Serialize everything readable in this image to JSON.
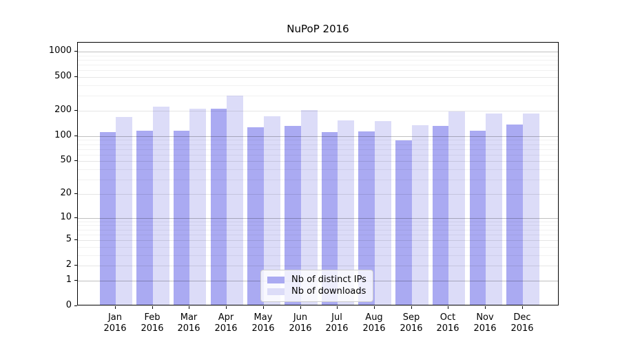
{
  "chart_data": {
    "type": "bar",
    "title": "NuPoP 2016",
    "categories": [
      "Jan",
      "Feb",
      "Mar",
      "Apr",
      "May",
      "Jun",
      "Jul",
      "Aug",
      "Sep",
      "Oct",
      "Nov",
      "Dec"
    ],
    "year_label": "2016",
    "series": [
      {
        "name": "Nb of distinct IPs",
        "color": "#aaaaf2",
        "values": [
          108,
          112,
          111,
          203,
          122,
          127,
          108,
          109,
          85,
          127,
          112,
          132
        ]
      },
      {
        "name": "Nb of downloads",
        "color": "#dcdcf8",
        "values": [
          163,
          217,
          204,
          290,
          167,
          198,
          148,
          146,
          130,
          189,
          177,
          177
        ]
      }
    ],
    "yscale": "log1p",
    "ylim": [
      0,
      1000
    ],
    "y_ticks": [
      0,
      1,
      2,
      5,
      10,
      20,
      50,
      100,
      200,
      500,
      1000
    ],
    "y_minor_ticks": [
      3,
      4,
      6,
      7,
      8,
      9,
      30,
      40,
      60,
      70,
      80,
      90,
      300,
      400,
      600,
      700,
      800,
      900
    ],
    "y_dark_gridlines": [
      1,
      10,
      100,
      1000
    ],
    "grid": true,
    "legend_position": "lower center"
  }
}
